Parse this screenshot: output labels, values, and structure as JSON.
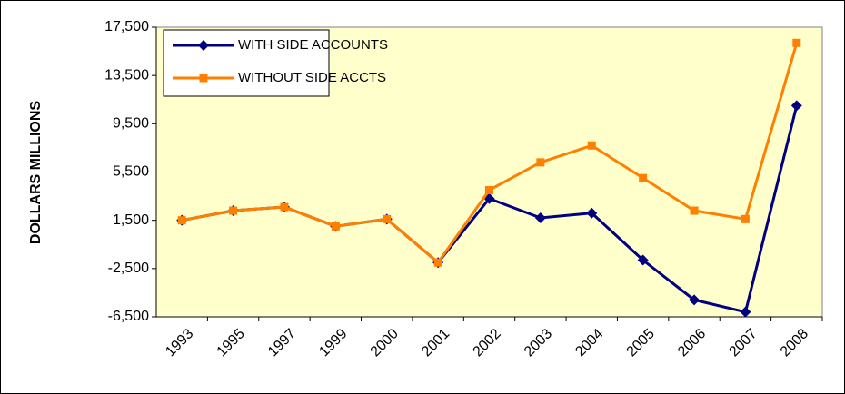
{
  "chart_data": {
    "type": "line",
    "y_label": "DOLLARS MILLIONS",
    "categories": [
      "1993",
      "1995",
      "1997",
      "1999",
      "2000",
      "2001",
      "2002",
      "2003",
      "2004",
      "2005",
      "2006",
      "2007",
      "2008"
    ],
    "series": [
      {
        "name": "WITH SIDE ACCOUNTS",
        "color": "#000080",
        "marker": "diamond",
        "values": [
          1500,
          2300,
          2600,
          1000,
          1600,
          -2000,
          3300,
          1700,
          2100,
          -1800,
          -5100,
          -6100,
          11000
        ]
      },
      {
        "name": "WITHOUT SIDE ACCTS",
        "color": "#ff8000",
        "marker": "square",
        "values": [
          1500,
          2300,
          2600,
          1000,
          1600,
          -2000,
          4000,
          6300,
          7700,
          5000,
          2300,
          1600,
          16200
        ]
      }
    ],
    "ylim": [
      -6500,
      17500
    ],
    "yticks": [
      {
        "value": -6500,
        "label": "-6,500"
      },
      {
        "value": -2500,
        "label": "-2,500"
      },
      {
        "value": 1500,
        "label": "1,500"
      },
      {
        "value": 5500,
        "label": "5,500"
      },
      {
        "value": 9500,
        "label": "9,500"
      },
      {
        "value": 13500,
        "label": "13,500"
      },
      {
        "value": 17500,
        "label": "17,500"
      }
    ],
    "plot_background": "#ffffcc",
    "legend": "upper left"
  }
}
